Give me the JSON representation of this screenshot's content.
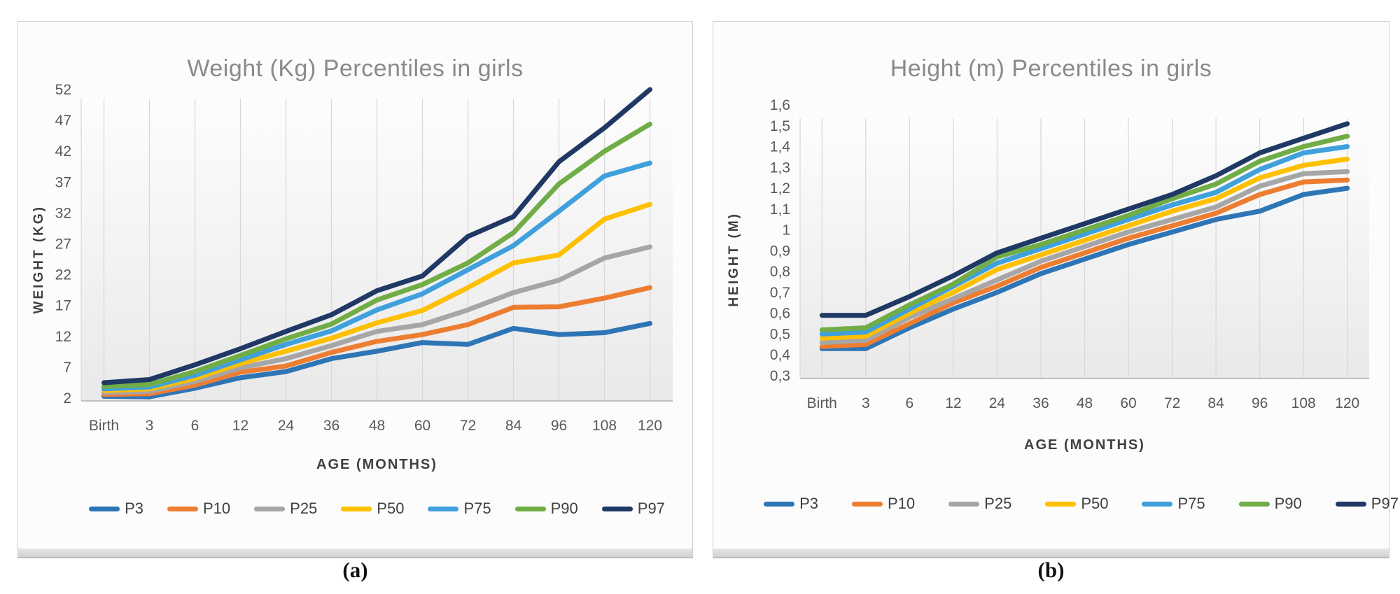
{
  "captions": [
    "(a)",
    "(b)"
  ],
  "colors": {
    "grid": "#d9d9d9",
    "axis_line": "#bfbfbf",
    "tick_text": "#595959",
    "axis_title_text": "#404040",
    "chart_title_text": "#8a8a8a",
    "panel_border": "#cfcfcf",
    "plot_gradient_top": "#fdfdfd",
    "plot_gradient_bottom": "#e9e9e9"
  },
  "chart_data": [
    {
      "type": "line",
      "title": "Weight (Kg) Percentiles in girls",
      "xlabel": "AGE (MONTHS)",
      "ylabel": "WEIGHT (KG)",
      "categories": [
        "Birth",
        "3",
        "6",
        "12",
        "24",
        "36",
        "48",
        "60",
        "72",
        "84",
        "96",
        "108",
        "120"
      ],
      "y_tick_labels": [
        "52",
        "47",
        "42",
        "37",
        "32",
        "27",
        "22",
        "17",
        "12",
        "7",
        "2"
      ],
      "ylim": [
        2,
        52
      ],
      "grid": "vertical-only",
      "legend_position": "bottom",
      "series": [
        {
          "name": "P3",
          "color": "#2e75b6",
          "values": [
            2.3,
            2.2,
            3.6,
            5.3,
            6.3,
            8.4,
            9.6,
            11.0,
            10.7,
            13.3,
            12.3,
            12.6,
            14.1
          ]
        },
        {
          "name": "P10",
          "color": "#ed7d31",
          "values": [
            2.6,
            2.7,
            4.1,
            6.2,
            7.2,
            9.4,
            11.2,
            12.3,
            13.9,
            16.7,
            16.8,
            18.2,
            19.9
          ]
        },
        {
          "name": "P25",
          "color": "#a6a6a6",
          "values": [
            2.9,
            3.1,
            4.7,
            6.9,
            8.4,
            10.5,
            12.8,
            13.9,
            16.3,
            19.1,
            21.1,
            24.7,
            26.5
          ]
        },
        {
          "name": "P50",
          "color": "#ffc000",
          "values": [
            3.2,
            3.5,
            5.2,
            7.6,
            9.6,
            11.7,
            14.2,
            16.2,
            19.9,
            23.9,
            25.2,
            31.0,
            33.4
          ]
        },
        {
          "name": "P75",
          "color": "#3fa0dc",
          "values": [
            3.5,
            3.8,
            5.7,
            8.2,
            10.7,
            12.9,
            16.3,
            18.9,
            22.8,
            26.7,
            32.3,
            38.0,
            40.1
          ]
        },
        {
          "name": "P90",
          "color": "#70ad47",
          "values": [
            3.9,
            4.2,
            6.3,
            8.9,
            11.6,
            14.0,
            17.9,
            20.4,
            23.9,
            28.8,
            36.7,
            42.0,
            46.4
          ]
        },
        {
          "name": "P97",
          "color": "#1f3864",
          "values": [
            4.5,
            5.0,
            7.4,
            10.0,
            12.8,
            15.5,
            19.4,
            21.8,
            28.2,
            31.4,
            40.3,
            45.8,
            52.0
          ]
        }
      ]
    },
    {
      "type": "line",
      "title": "Height (m) Percentiles in girls",
      "xlabel": "AGE (MONTHS)",
      "ylabel": "HEIGHT (M)",
      "categories": [
        "Birth",
        "3",
        "6",
        "12",
        "24",
        "36",
        "48",
        "60",
        "72",
        "84",
        "96",
        "108",
        "120"
      ],
      "y_tick_labels": [
        "1,6",
        "1,5",
        "1,4",
        "1,3",
        "1,2",
        "1,1",
        "1",
        "0,9",
        "0,8",
        "0,7",
        "0,6",
        "0,5",
        "0,4",
        "0,3"
      ],
      "ylim": [
        0.3,
        1.6
      ],
      "grid": "vertical-only",
      "legend_position": "bottom",
      "series": [
        {
          "name": "P3",
          "color": "#2e75b6",
          "values": [
            0.43,
            0.43,
            0.53,
            0.62,
            0.7,
            0.79,
            0.86,
            0.93,
            0.99,
            1.05,
            1.09,
            1.17,
            1.2
          ]
        },
        {
          "name": "P10",
          "color": "#ed7d31",
          "values": [
            0.44,
            0.45,
            0.55,
            0.65,
            0.73,
            0.82,
            0.89,
            0.96,
            1.02,
            1.08,
            1.17,
            1.23,
            1.24
          ]
        },
        {
          "name": "P25",
          "color": "#a6a6a6",
          "values": [
            0.46,
            0.47,
            0.58,
            0.67,
            0.76,
            0.85,
            0.92,
            0.99,
            1.05,
            1.11,
            1.21,
            1.27,
            1.28
          ]
        },
        {
          "name": "P50",
          "color": "#ffc000",
          "values": [
            0.48,
            0.49,
            0.6,
            0.7,
            0.81,
            0.88,
            0.95,
            1.02,
            1.09,
            1.15,
            1.25,
            1.31,
            1.34
          ]
        },
        {
          "name": "P75",
          "color": "#3fa0dc",
          "values": [
            0.5,
            0.51,
            0.62,
            0.73,
            0.84,
            0.91,
            0.98,
            1.05,
            1.12,
            1.18,
            1.29,
            1.37,
            1.4
          ]
        },
        {
          "name": "P90",
          "color": "#70ad47",
          "values": [
            0.52,
            0.53,
            0.64,
            0.74,
            0.87,
            0.93,
            1.0,
            1.07,
            1.15,
            1.22,
            1.33,
            1.4,
            1.45
          ]
        },
        {
          "name": "P97",
          "color": "#1f3864",
          "values": [
            0.59,
            0.59,
            0.68,
            0.78,
            0.89,
            0.96,
            1.03,
            1.1,
            1.17,
            1.26,
            1.37,
            1.44,
            1.51
          ]
        }
      ]
    }
  ]
}
